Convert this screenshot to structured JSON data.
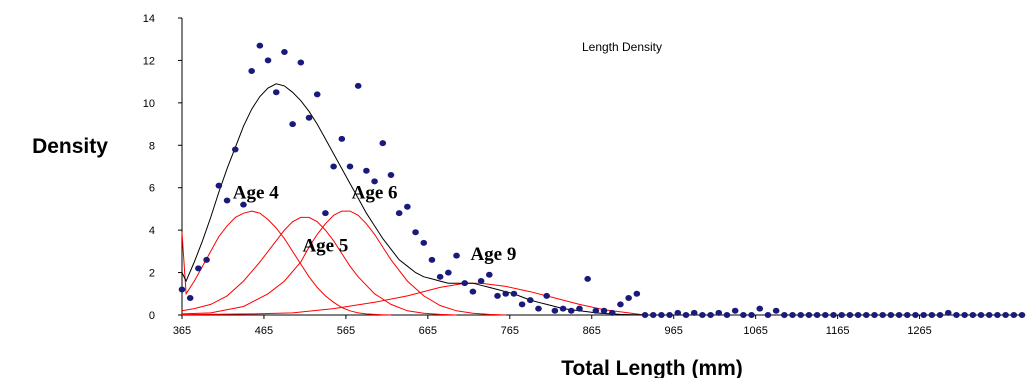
{
  "chart_data": {
    "type": "scatter",
    "title": "Length Density",
    "xlabel": "Total Length  (mm)",
    "ylabel": "Density",
    "xlim": [
      365,
      1390
    ],
    "ylim": [
      0,
      14
    ],
    "x_ticks": [
      365,
      465,
      565,
      665,
      765,
      865,
      965,
      1065,
      1165,
      1265
    ],
    "y_ticks": [
      0,
      2,
      4,
      6,
      8,
      10,
      12,
      14
    ],
    "grid": false,
    "legend": "none",
    "colors": {
      "points": "#1a1a7a",
      "total_curve": "#000000",
      "age_curves": "#ff0000"
    },
    "observed": {
      "x": [
        365,
        375,
        385,
        395,
        410,
        420,
        430,
        440,
        450,
        460,
        470,
        480,
        490,
        500,
        510,
        520,
        530,
        540,
        550,
        560,
        570,
        580,
        590,
        600,
        610,
        620,
        630,
        640,
        650,
        660,
        670,
        680,
        690,
        700,
        710,
        720,
        730,
        740,
        750,
        760,
        770,
        780,
        790,
        800,
        810,
        820,
        830,
        840,
        850,
        860,
        870,
        880,
        890,
        900,
        910,
        920,
        930,
        940,
        950,
        960,
        970,
        980,
        990,
        1000,
        1010,
        1020,
        1030,
        1040,
        1050,
        1060,
        1070,
        1080,
        1090,
        1100,
        1110,
        1120,
        1130,
        1140,
        1150,
        1160,
        1170,
        1180,
        1190,
        1200,
        1210,
        1220,
        1230,
        1240,
        1250,
        1260,
        1270,
        1280,
        1290,
        1300,
        1310,
        1320,
        1330,
        1340,
        1350,
        1360,
        1370,
        1380,
        1390
      ],
      "y": [
        1.2,
        0.8,
        2.2,
        2.6,
        6.1,
        5.4,
        7.8,
        5.2,
        11.5,
        12.7,
        12.0,
        10.5,
        12.4,
        9.0,
        11.9,
        9.3,
        10.4,
        4.8,
        7.0,
        8.3,
        7.0,
        10.8,
        6.8,
        6.3,
        8.1,
        6.6,
        4.8,
        5.1,
        3.9,
        3.4,
        2.6,
        1.8,
        2.0,
        2.8,
        1.5,
        1.1,
        1.6,
        1.9,
        0.9,
        1.0,
        1.0,
        0.5,
        0.7,
        0.3,
        0.9,
        0.2,
        0.3,
        0.2,
        0.3,
        1.7,
        0.2,
        0.2,
        0.1,
        0.5,
        0.8,
        1.0,
        0,
        0,
        0,
        0,
        0.1,
        0,
        0.1,
        0,
        0,
        0.1,
        0,
        0.2,
        0,
        0,
        0.3,
        0,
        0.2,
        0,
        0,
        0,
        0,
        0,
        0,
        0,
        0,
        0,
        0,
        0,
        0,
        0,
        0,
        0,
        0,
        0,
        0,
        0,
        0,
        0.1,
        0,
        0,
        0,
        0,
        0,
        0,
        0,
        0,
        0
      ]
    },
    "total_curve": {
      "x": [
        365,
        370,
        380,
        390,
        400,
        410,
        420,
        430,
        440,
        450,
        460,
        470,
        480,
        490,
        500,
        510,
        520,
        530,
        540,
        550,
        560,
        570,
        580,
        590,
        600,
        610,
        620,
        630,
        640,
        650,
        660,
        670,
        680,
        690,
        700,
        710,
        720,
        730,
        740,
        750,
        760,
        770,
        780,
        790,
        800,
        810,
        820,
        830,
        840,
        850,
        860,
        870,
        880,
        890,
        900,
        910,
        920,
        930
      ],
      "y": [
        2.0,
        1.6,
        2.5,
        3.5,
        4.6,
        5.8,
        6.9,
        7.9,
        8.9,
        9.7,
        10.3,
        10.7,
        10.9,
        10.8,
        10.5,
        10.1,
        9.6,
        9.0,
        8.3,
        7.6,
        6.9,
        6.2,
        5.5,
        4.8,
        4.2,
        3.6,
        3.1,
        2.6,
        2.3,
        2.0,
        1.8,
        1.7,
        1.6,
        1.5,
        1.5,
        1.5,
        1.5,
        1.4,
        1.3,
        1.2,
        1.1,
        1.0,
        0.85,
        0.7,
        0.6,
        0.5,
        0.4,
        0.3,
        0.25,
        0.2,
        0.15,
        0.1,
        0.07,
        0.05,
        0.03,
        0.02,
        0.01,
        0.0
      ]
    },
    "age_curves": [
      {
        "label": "Age 4",
        "x": [
          365,
          370,
          380,
          390,
          400,
          410,
          420,
          430,
          440,
          450,
          460,
          470,
          480,
          490,
          500,
          510,
          520,
          530,
          540,
          550,
          560,
          570,
          580,
          590,
          600,
          610,
          620
        ],
        "y": [
          3.9,
          1.0,
          1.6,
          2.3,
          3.0,
          3.7,
          4.2,
          4.6,
          4.8,
          4.9,
          4.8,
          4.5,
          4.1,
          3.6,
          3.0,
          2.4,
          1.8,
          1.3,
          0.9,
          0.6,
          0.35,
          0.2,
          0.1,
          0.05,
          0.03,
          0.01,
          0
        ]
      },
      {
        "label": "Age 5",
        "x": [
          365,
          380,
          400,
          420,
          440,
          460,
          470,
          480,
          490,
          500,
          510,
          520,
          530,
          540,
          550,
          560,
          570,
          580,
          600,
          620,
          640,
          660,
          680,
          700
        ],
        "y": [
          0.2,
          0.3,
          0.5,
          0.9,
          1.6,
          2.5,
          3.0,
          3.5,
          4.0,
          4.4,
          4.6,
          4.6,
          4.4,
          4.0,
          3.5,
          2.9,
          2.3,
          1.8,
          1.0,
          0.5,
          0.2,
          0.08,
          0.03,
          0
        ]
      },
      {
        "label": "Age 6",
        "x": [
          365,
          400,
          440,
          470,
          490,
          510,
          520,
          530,
          540,
          550,
          560,
          570,
          580,
          590,
          600,
          610,
          620,
          630,
          640,
          660,
          680,
          700,
          720,
          740,
          760
        ],
        "y": [
          0.05,
          0.1,
          0.4,
          1.0,
          1.6,
          2.5,
          3.2,
          3.8,
          4.3,
          4.7,
          4.9,
          4.9,
          4.7,
          4.3,
          3.8,
          3.2,
          2.6,
          2.1,
          1.6,
          0.9,
          0.45,
          0.2,
          0.08,
          0.03,
          0
        ]
      },
      {
        "label": "Age 9",
        "x": [
          365,
          450,
          500,
          550,
          600,
          640,
          680,
          710,
          730,
          760,
          790,
          820,
          850,
          880,
          910,
          930
        ],
        "y": [
          0.02,
          0.05,
          0.1,
          0.3,
          0.6,
          0.9,
          1.3,
          1.5,
          1.5,
          1.35,
          1.1,
          0.8,
          0.5,
          0.25,
          0.1,
          0.0
        ]
      }
    ],
    "annotations": [
      {
        "text": "Age 4",
        "x": 455,
        "y": 5.5
      },
      {
        "text": "Age 5",
        "x": 540,
        "y": 3.0
      },
      {
        "text": "Age 6",
        "x": 600,
        "y": 5.5
      },
      {
        "text": "Age 9",
        "x": 745,
        "y": 2.6
      }
    ]
  }
}
